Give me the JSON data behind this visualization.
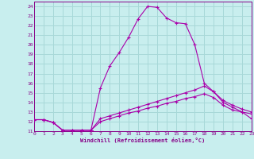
{
  "xlabel": "Windchill (Refroidissement éolien,°C)",
  "xlim": [
    0,
    23
  ],
  "ylim": [
    11,
    24.5
  ],
  "yticks": [
    11,
    12,
    13,
    14,
    15,
    16,
    17,
    18,
    19,
    20,
    21,
    22,
    23,
    24
  ],
  "xticks": [
    0,
    1,
    2,
    3,
    4,
    5,
    6,
    7,
    8,
    9,
    10,
    11,
    12,
    13,
    14,
    15,
    16,
    17,
    18,
    19,
    20,
    21,
    22,
    23
  ],
  "bg_color": "#c8eeee",
  "grid_color": "#a8d8d8",
  "line_color": "#aa00aa",
  "spine_color": "#880088",
  "line1_x": [
    0,
    1,
    2,
    3,
    4,
    5,
    6,
    7,
    8,
    9,
    10,
    11,
    12,
    13,
    14,
    15,
    16,
    17,
    18,
    19,
    20,
    21,
    22,
    23
  ],
  "line1_y": [
    12.2,
    12.2,
    11.9,
    11.1,
    11.1,
    11.1,
    11.1,
    15.5,
    17.8,
    19.2,
    20.8,
    22.7,
    24.0,
    23.9,
    22.8,
    22.3,
    22.2,
    20.0,
    16.0,
    15.1,
    14.0,
    13.5,
    13.0,
    12.3
  ],
  "line2_x": [
    0,
    1,
    2,
    3,
    4,
    5,
    6,
    7,
    8,
    9,
    10,
    11,
    12,
    13,
    14,
    15,
    16,
    17,
    18,
    19,
    20,
    21,
    22,
    23
  ],
  "line2_y": [
    12.2,
    12.2,
    11.9,
    11.1,
    11.1,
    11.1,
    11.1,
    12.3,
    12.6,
    12.9,
    13.2,
    13.5,
    13.8,
    14.1,
    14.4,
    14.7,
    15.0,
    15.3,
    15.7,
    15.1,
    14.2,
    13.7,
    13.3,
    13.0
  ],
  "line3_x": [
    0,
    1,
    2,
    3,
    4,
    5,
    6,
    7,
    8,
    9,
    10,
    11,
    12,
    13,
    14,
    15,
    16,
    17,
    18,
    19,
    20,
    21,
    22,
    23
  ],
  "line3_y": [
    12.2,
    12.2,
    11.9,
    11.1,
    11.1,
    11.1,
    11.1,
    12.0,
    12.3,
    12.6,
    12.9,
    13.1,
    13.4,
    13.6,
    13.9,
    14.1,
    14.4,
    14.6,
    14.9,
    14.5,
    13.7,
    13.2,
    13.0,
    12.8
  ]
}
